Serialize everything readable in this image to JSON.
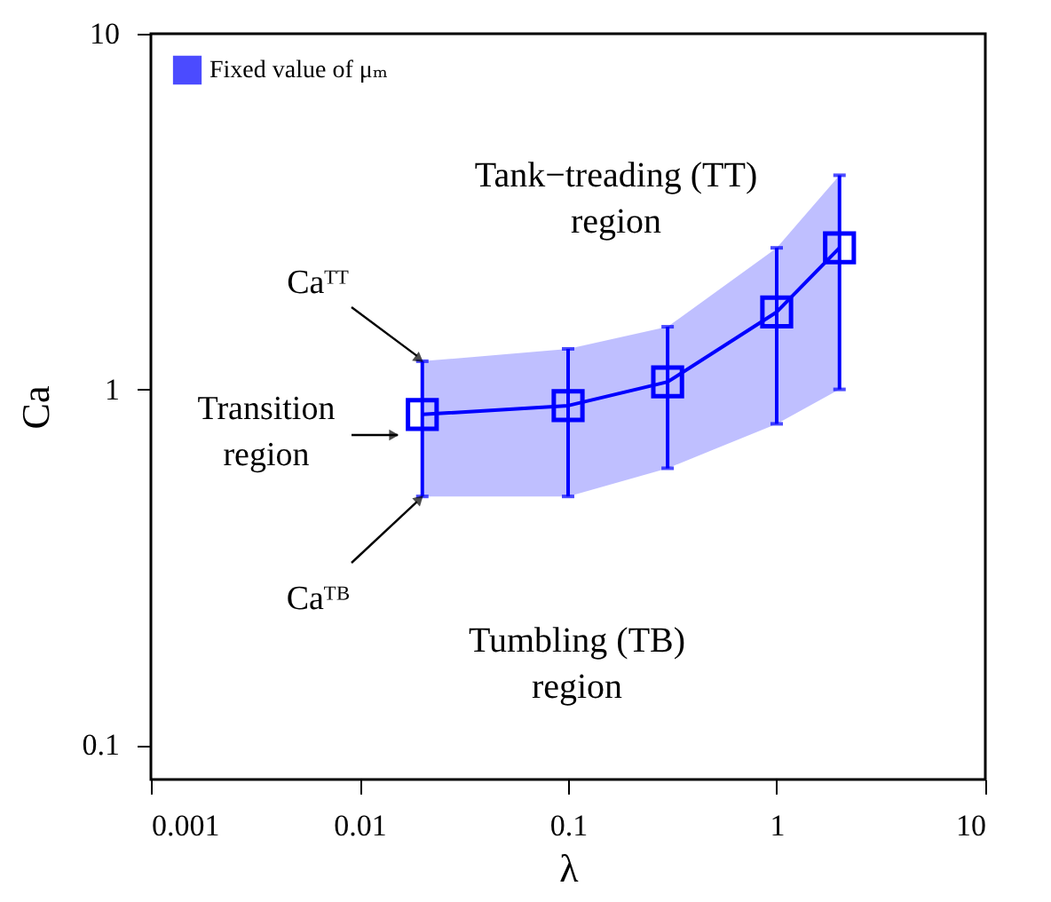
{
  "chart_data": {
    "type": "line",
    "xlabel": "λ",
    "ylabel": "Ca",
    "x": [
      0.02,
      0.1,
      0.3,
      1,
      2
    ],
    "series": [
      {
        "name": "Fixed value of μₘ",
        "color": "#0000ff",
        "values": [
          0.85,
          0.9,
          1.05,
          1.65,
          2.5
        ],
        "errors": [
          [
            0.5,
            1.2
          ],
          [
            0.5,
            1.3
          ],
          [
            0.6,
            1.5
          ],
          [
            0.8,
            2.5
          ],
          [
            1.0,
            4.0
          ]
        ],
        "lower": [
          0.5,
          0.5,
          0.6,
          0.8,
          1.0
        ],
        "upper": [
          1.2,
          1.3,
          1.5,
          2.5,
          4.0
        ]
      }
    ],
    "annotations": [
      "Tank−treading (TT)\nregion",
      {
        "text": "Caᵀᵀ",
        "x": 0.02,
        "y": 1.2
      },
      "Transition\nregion",
      {
        "text": "Caᵀᴮ",
        "x": 0.02,
        "y": 0.5
      },
      "Tumbling (TB)\nregion"
    ],
    "xlim": [
      0.001,
      10
    ],
    "ylim": [
      0.08,
      10
    ],
    "xticks": [
      0.001,
      0.01,
      0.1,
      1,
      10
    ],
    "yticks": [
      0.1,
      1,
      10
    ],
    "log": "xy",
    "grid": false,
    "legend": "top left",
    "marker": "square",
    "line_style": "solid"
  }
}
